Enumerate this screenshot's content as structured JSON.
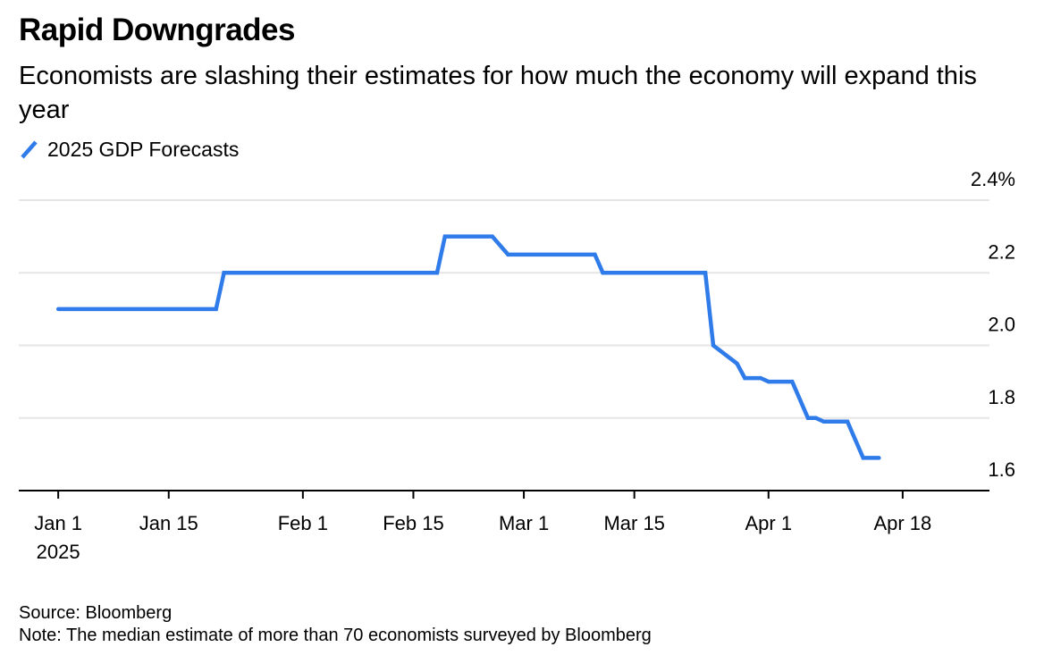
{
  "title": "Rapid Downgrades",
  "subtitle": "Economists are slashing their estimates for how much the economy will expand this year",
  "legend": {
    "label": "2025 GDP Forecasts",
    "color": "#2f7bea"
  },
  "footer": {
    "source": "Source: Bloomberg",
    "note": "Note: The median estimate of more than 70 economists surveyed by Bloomberg"
  },
  "chart_data": {
    "type": "line",
    "series": [
      {
        "name": "2025 GDP Forecasts",
        "color": "#2f7bea",
        "points": [
          {
            "x": "2025-01-01",
            "y": 2.1
          },
          {
            "x": "2025-01-21",
            "y": 2.1
          },
          {
            "x": "2025-01-22",
            "y": 2.2
          },
          {
            "x": "2025-02-18",
            "y": 2.2
          },
          {
            "x": "2025-02-19",
            "y": 2.3
          },
          {
            "x": "2025-02-25",
            "y": 2.3
          },
          {
            "x": "2025-02-27",
            "y": 2.25
          },
          {
            "x": "2025-03-10",
            "y": 2.25
          },
          {
            "x": "2025-03-11",
            "y": 2.2
          },
          {
            "x": "2025-03-24",
            "y": 2.2
          },
          {
            "x": "2025-03-25",
            "y": 2.0
          },
          {
            "x": "2025-03-28",
            "y": 1.95
          },
          {
            "x": "2025-03-29",
            "y": 1.91
          },
          {
            "x": "2025-03-31",
            "y": 1.91
          },
          {
            "x": "2025-04-01",
            "y": 1.9
          },
          {
            "x": "2025-04-04",
            "y": 1.9
          },
          {
            "x": "2025-04-06",
            "y": 1.8
          },
          {
            "x": "2025-04-07",
            "y": 1.8
          },
          {
            "x": "2025-04-08",
            "y": 1.79
          },
          {
            "x": "2025-04-11",
            "y": 1.79
          },
          {
            "x": "2025-04-12",
            "y": 1.74
          },
          {
            "x": "2025-04-13",
            "y": 1.69
          },
          {
            "x": "2025-04-15",
            "y": 1.69
          }
        ]
      }
    ],
    "x_ticks": [
      {
        "date": "2025-01-01",
        "label": "Jan 1",
        "sublabel": "2025"
      },
      {
        "date": "2025-01-15",
        "label": "Jan 15"
      },
      {
        "date": "2025-02-01",
        "label": "Feb 1"
      },
      {
        "date": "2025-02-15",
        "label": "Feb 15"
      },
      {
        "date": "2025-03-01",
        "label": "Mar 1"
      },
      {
        "date": "2025-03-15",
        "label": "Mar 15"
      },
      {
        "date": "2025-04-01",
        "label": "Apr 1"
      },
      {
        "date": "2025-04-18",
        "label": "Apr 18"
      }
    ],
    "y_ticks": [
      {
        "value": 1.6,
        "label": "1.6"
      },
      {
        "value": 1.8,
        "label": "1.8"
      },
      {
        "value": 2.0,
        "label": "2.0"
      },
      {
        "value": 2.2,
        "label": "2.2"
      },
      {
        "value": 2.4,
        "label": "2.4%"
      }
    ],
    "xlim": [
      "2024-12-27",
      "2025-04-29"
    ],
    "ylim": [
      1.6,
      2.4
    ],
    "ylabel": "",
    "xlabel": "",
    "grid": true,
    "y_axis_side": "right",
    "legend_position": "top-left"
  }
}
